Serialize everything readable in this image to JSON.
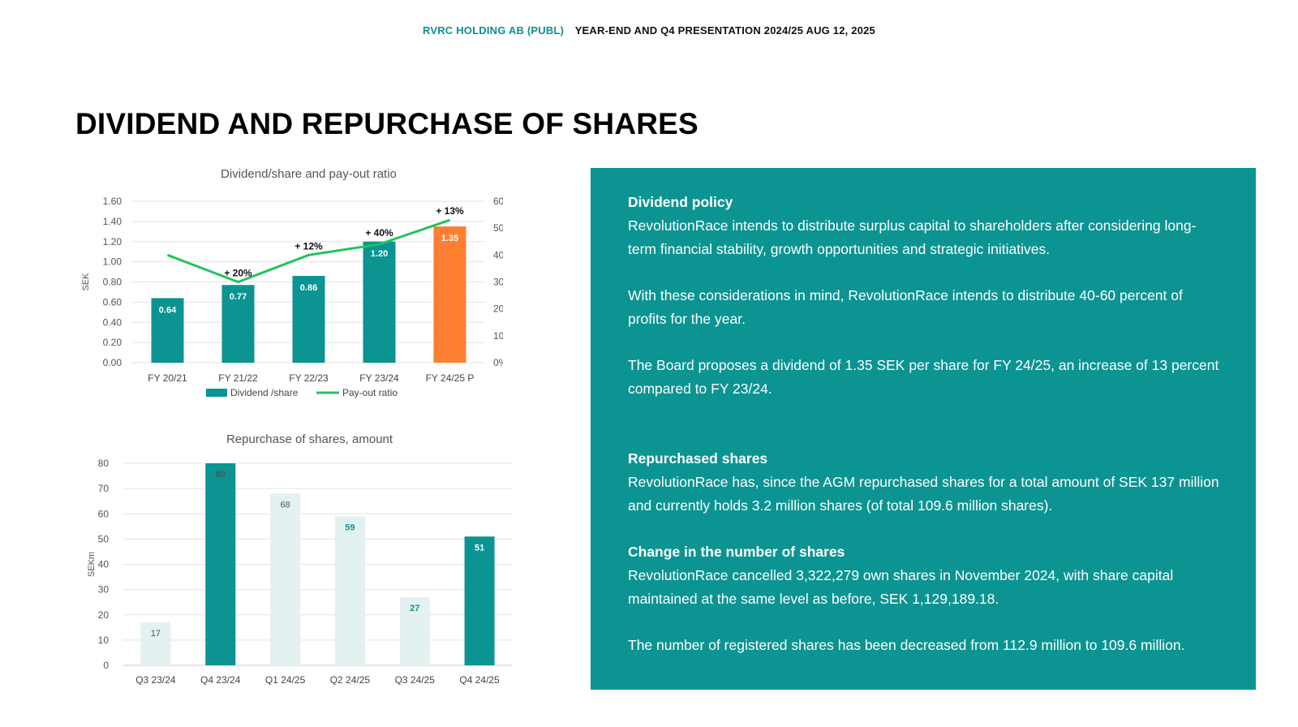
{
  "header": {
    "company": "RVRC HOLDING AB (PUBL)",
    "presentation": "YEAR-END AND Q4 PRESENTATION 2024/25  AUG 12, 2025"
  },
  "title": "DIVIDEND AND REPURCHASE OF SHARES",
  "colors": {
    "teal": "#0b9492",
    "orange": "#ff7f32",
    "light_teal": "#e3f1f0",
    "line_green": "#1fc45e"
  },
  "chart_data": [
    {
      "type": "bar",
      "title": "Dividend/share and pay-out ratio",
      "ylabel": "SEK",
      "categories": [
        "FY 20/21",
        "FY 21/22",
        "FY 22/23",
        "FY 23/24",
        "FY 24/25 P"
      ],
      "series": [
        {
          "name": "Dividend /share",
          "type": "bar",
          "values": [
            0.64,
            0.77,
            0.86,
            1.2,
            1.35
          ],
          "value_labels": [
            "0.64",
            "0.77",
            "0.86",
            "1.20",
            "1.35"
          ],
          "highlight_index": 4
        },
        {
          "name": "Pay-out ratio",
          "type": "line",
          "axis": "right",
          "values": [
            0.4,
            0.3,
            0.4,
            0.44,
            0.53
          ]
        }
      ],
      "growth_labels": [
        "",
        "+ 20%",
        "+ 12%",
        "+ 40%",
        "+ 13%"
      ],
      "ylim": [
        0,
        1.6
      ],
      "yticks": [
        "0.00",
        "0.20",
        "0.40",
        "0.60",
        "0.80",
        "1.00",
        "1.20",
        "1.40",
        "1.60"
      ],
      "y2lim": [
        0,
        0.6
      ],
      "y2ticks": [
        "0%",
        "10%",
        "20%",
        "30%",
        "40%",
        "50%",
        "60%"
      ],
      "legend": [
        "Dividend /share",
        "Pay-out ratio"
      ],
      "legend_position": "bottom",
      "grid": true
    },
    {
      "type": "bar",
      "title": "Repurchase of shares, amount",
      "ylabel": "SEKm",
      "categories": [
        "Q3 23/24",
        "Q4 23/24",
        "Q1 24/25",
        "Q2 24/25",
        "Q3 24/25",
        "Q4 24/25"
      ],
      "values": [
        17,
        80,
        68,
        59,
        27,
        51
      ],
      "value_labels": [
        "17",
        "80",
        "68",
        "59",
        "27",
        "51"
      ],
      "highlight": [
        false,
        true,
        false,
        false,
        false,
        true
      ],
      "ylim": [
        0,
        80
      ],
      "yticks": [
        "0",
        "10",
        "20",
        "30",
        "40",
        "50",
        "60",
        "70",
        "80"
      ],
      "grid": true
    }
  ],
  "panel": {
    "dividend_policy": {
      "heading": "Dividend policy",
      "para1": "RevolutionRace intends to distribute surplus capital to shareholders after considering long-term financial stability, growth opportunities and strategic initiatives.",
      "para2": "With these considerations in mind, RevolutionRace intends to distribute 40-60 percent of profits for the year.",
      "para3": "The Board proposes a dividend of 1.35 SEK per share for FY 24/25, an increase of 13 percent compared to FY 23/24."
    },
    "repurchased": {
      "heading": "Repurchased shares",
      "para1": "RevolutionRace has, since the AGM repurchased shares for a total amount of SEK 137 million and currently holds 3.2 million shares (of total 109.6 million shares)."
    },
    "change": {
      "heading": "Change in the number of shares",
      "para1": "RevolutionRace cancelled 3,322,279 own shares in November 2024, with share capital maintained at the same level as before, SEK 1,129,189.18.",
      "para2": "The number of registered shares has been decreased from 112.9 million to 109.6 million."
    }
  }
}
